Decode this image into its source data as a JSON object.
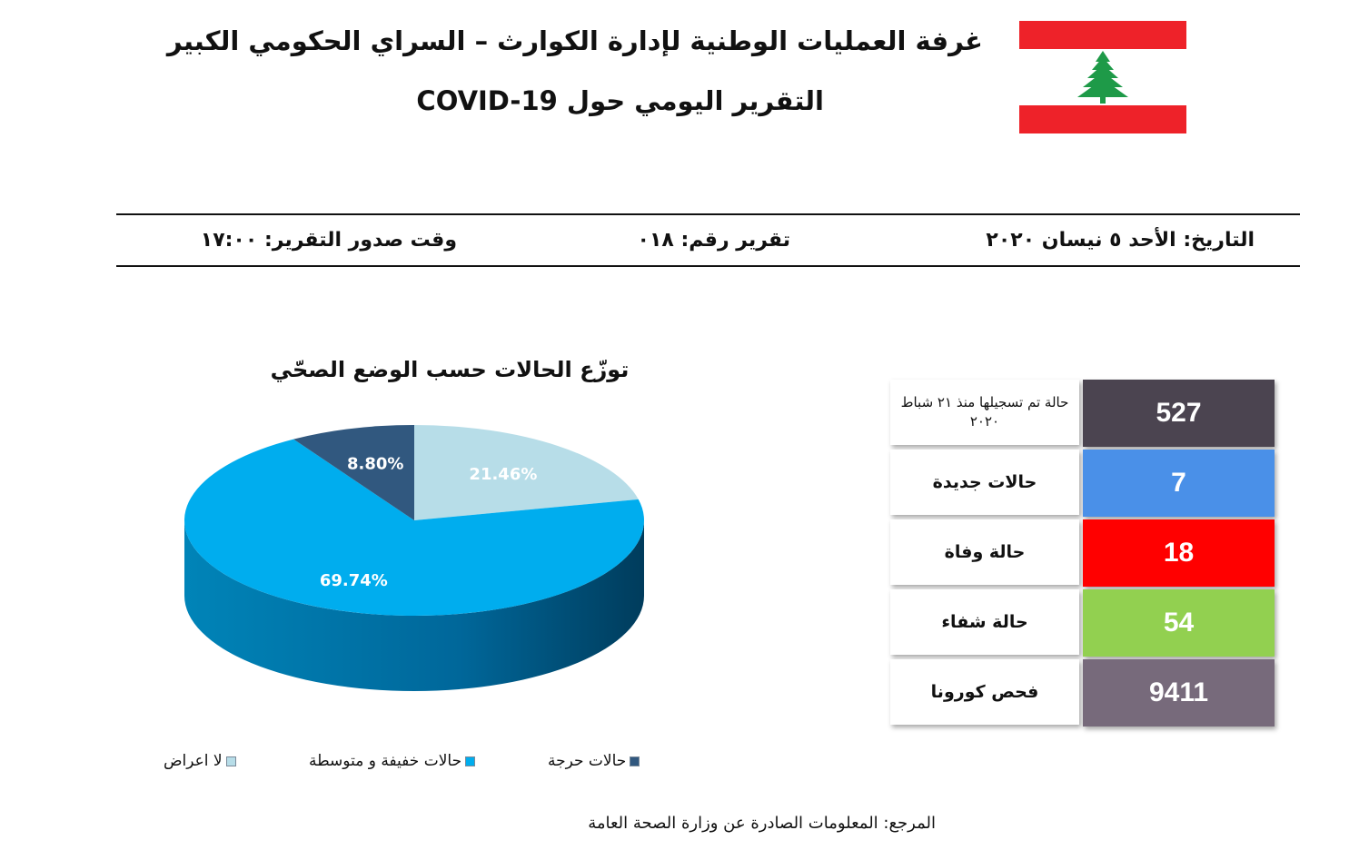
{
  "header": {
    "title_line1": "غرفة العمليات الوطنية لإدارة الكوارث – السراي الحكومي الكبير",
    "title_line2": "التقرير اليومي حول COVID-19",
    "flag_icon": "lebanon-flag-icon",
    "flag_colors": {
      "red": "#ee2229",
      "white": "#ffffff",
      "cedar": "#1e9a48"
    }
  },
  "meta": {
    "date": "التاريخ: الأحد ٥ نيسان ٢٠٢٠",
    "report_number": "تقرير رقم: ٠١٨",
    "issue_time": "وقت صدور التقرير: ١٧:٠٠"
  },
  "chart_data": {
    "type": "pie",
    "title": "توزّع الحالات حسب الوضع الصحّي",
    "categories": [
      "لا اعراض",
      "حالات خفيفة و متوسطة",
      "حالات حرجة"
    ],
    "values": [
      21.46,
      69.74,
      8.8
    ],
    "labels": [
      "21.46%",
      "69.74%",
      "8.80%"
    ],
    "colors": [
      "#b7dde8",
      "#00adee",
      "#31587f"
    ],
    "legend_position": "bottom"
  },
  "stats": [
    {
      "label": "حالة تم تسجيلها منذ ٢١ شباط ٢٠٢٠",
      "value": "527",
      "color": "#4b4450",
      "small": true
    },
    {
      "label": "حالات جديدة",
      "value": "7",
      "color": "#4a90e8",
      "small": false
    },
    {
      "label": "حالة وفاة",
      "value": "18",
      "color": "#ff0000",
      "small": false
    },
    {
      "label": "حالة شفاء",
      "value": "54",
      "color": "#92d050",
      "small": false
    },
    {
      "label": "فحص كورونا",
      "value": "9411",
      "color": "#776a7b",
      "small": false
    }
  ],
  "footer": {
    "source": "المرجع: المعلومات الصادرة عن وزارة الصحة العامة"
  }
}
